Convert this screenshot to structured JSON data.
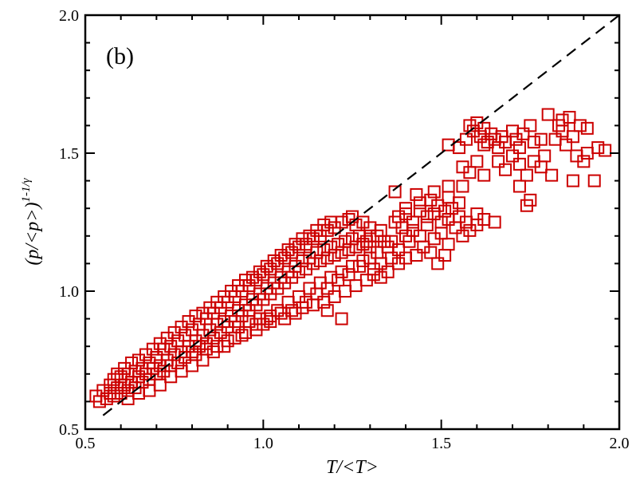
{
  "chart_data": {
    "type": "scatter",
    "panel_label": "(b)",
    "xlabel": "T/<T>",
    "ylabel": "(p/<p>)",
    "ylabel_exponent": "1-1/γ",
    "xlim": [
      0.5,
      2.0
    ],
    "ylim": [
      0.5,
      2.0
    ],
    "x_ticks": [
      0.5,
      1.0,
      1.5,
      2.0
    ],
    "x_tick_labels": [
      "0.5",
      "1.0",
      "1.5",
      "2.0"
    ],
    "y_ticks": [
      0.5,
      1.0,
      1.5,
      2.0
    ],
    "y_tick_labels": [
      "0.5",
      "1.0",
      "1.5",
      "2.0"
    ],
    "marker": "open-square",
    "marker_color": "#cc0000",
    "reference_line": {
      "style": "dashed",
      "color": "#000000",
      "x": [
        0.55,
        2.0
      ],
      "y": [
        0.55,
        2.0
      ]
    },
    "series": [
      {
        "name": "data",
        "points": [
          [
            0.53,
            0.62
          ],
          [
            0.54,
            0.6
          ],
          [
            0.55,
            0.64
          ],
          [
            0.56,
            0.61
          ],
          [
            0.57,
            0.63
          ],
          [
            0.58,
            0.62
          ],
          [
            0.59,
            0.65
          ],
          [
            0.6,
            0.63
          ],
          [
            0.61,
            0.66
          ],
          [
            0.62,
            0.64
          ],
          [
            0.63,
            0.67
          ],
          [
            0.64,
            0.65
          ],
          [
            0.65,
            0.69
          ],
          [
            0.66,
            0.67
          ],
          [
            0.67,
            0.7
          ],
          [
            0.68,
            0.68
          ],
          [
            0.69,
            0.72
          ],
          [
            0.7,
            0.7
          ],
          [
            0.71,
            0.73
          ],
          [
            0.72,
            0.71
          ],
          [
            0.73,
            0.75
          ],
          [
            0.74,
            0.73
          ],
          [
            0.75,
            0.77
          ],
          [
            0.76,
            0.74
          ],
          [
            0.77,
            0.78
          ],
          [
            0.78,
            0.76
          ],
          [
            0.79,
            0.8
          ],
          [
            0.8,
            0.78
          ],
          [
            0.81,
            0.82
          ],
          [
            0.82,
            0.8
          ],
          [
            0.83,
            0.84
          ],
          [
            0.84,
            0.81
          ],
          [
            0.85,
            0.86
          ],
          [
            0.86,
            0.83
          ],
          [
            0.87,
            0.88
          ],
          [
            0.88,
            0.85
          ],
          [
            0.89,
            0.89
          ],
          [
            0.9,
            0.87
          ],
          [
            0.91,
            0.91
          ],
          [
            0.92,
            0.89
          ],
          [
            0.93,
            0.93
          ],
          [
            0.94,
            0.91
          ],
          [
            0.95,
            0.95
          ],
          [
            0.96,
            0.93
          ],
          [
            0.97,
            0.97
          ],
          [
            0.98,
            0.95
          ],
          [
            0.99,
            0.99
          ],
          [
            1.0,
            0.97
          ],
          [
            1.01,
            1.01
          ],
          [
            1.02,
            0.99
          ],
          [
            1.03,
            1.03
          ],
          [
            1.04,
            1.01
          ],
          [
            1.05,
            1.05
          ],
          [
            1.06,
            1.03
          ],
          [
            1.07,
            1.07
          ],
          [
            1.08,
            1.05
          ],
          [
            1.09,
            1.09
          ],
          [
            1.1,
            1.07
          ],
          [
            1.11,
            1.11
          ],
          [
            1.12,
            1.08
          ],
          [
            1.13,
            1.12
          ],
          [
            1.14,
            1.1
          ],
          [
            1.15,
            1.14
          ],
          [
            1.16,
            1.11
          ],
          [
            1.17,
            1.15
          ],
          [
            1.18,
            1.12
          ],
          [
            1.19,
            1.16
          ],
          [
            1.2,
            1.13
          ],
          [
            1.21,
            1.17
          ],
          [
            1.22,
            1.14
          ],
          [
            1.23,
            1.18
          ],
          [
            1.24,
            1.15
          ],
          [
            1.25,
            1.19
          ],
          [
            1.26,
            1.16
          ],
          [
            1.27,
            1.2
          ],
          [
            1.28,
            1.17
          ],
          [
            1.29,
            1.18
          ],
          [
            1.3,
            1.16
          ],
          [
            1.32,
            1.2
          ],
          [
            1.34,
            1.18
          ],
          [
            0.58,
            0.68
          ],
          [
            0.6,
            0.69
          ],
          [
            0.62,
            0.7
          ],
          [
            0.64,
            0.71
          ],
          [
            0.66,
            0.72
          ],
          [
            0.68,
            0.74
          ],
          [
            0.7,
            0.76
          ],
          [
            0.72,
            0.79
          ],
          [
            0.74,
            0.8
          ],
          [
            0.76,
            0.82
          ],
          [
            0.78,
            0.84
          ],
          [
            0.8,
            0.86
          ],
          [
            0.82,
            0.88
          ],
          [
            0.84,
            0.9
          ],
          [
            0.86,
            0.92
          ],
          [
            0.88,
            0.94
          ],
          [
            0.9,
            0.96
          ],
          [
            0.92,
            0.98
          ],
          [
            0.94,
            1.0
          ],
          [
            0.96,
            1.02
          ],
          [
            0.98,
            1.04
          ],
          [
            1.0,
            1.06
          ],
          [
            1.02,
            1.08
          ],
          [
            1.04,
            1.1
          ],
          [
            1.06,
            1.12
          ],
          [
            1.08,
            1.14
          ],
          [
            1.1,
            1.16
          ],
          [
            1.12,
            1.17
          ],
          [
            1.14,
            1.19
          ],
          [
            1.16,
            1.2
          ],
          [
            1.18,
            1.22
          ],
          [
            1.2,
            1.23
          ],
          [
            1.22,
            1.25
          ],
          [
            1.24,
            1.26
          ],
          [
            1.26,
            1.24
          ],
          [
            1.28,
            1.25
          ],
          [
            1.3,
            1.23
          ],
          [
            1.25,
            1.27
          ],
          [
            0.62,
            0.61
          ],
          [
            0.65,
            0.63
          ],
          [
            0.68,
            0.64
          ],
          [
            0.71,
            0.66
          ],
          [
            0.74,
            0.69
          ],
          [
            0.77,
            0.71
          ],
          [
            0.8,
            0.73
          ],
          [
            0.83,
            0.75
          ],
          [
            0.86,
            0.78
          ],
          [
            0.89,
            0.8
          ],
          [
            0.92,
            0.83
          ],
          [
            0.95,
            0.85
          ],
          [
            0.98,
            0.88
          ],
          [
            1.01,
            0.9
          ],
          [
            1.04,
            0.93
          ],
          [
            1.07,
            0.96
          ],
          [
            1.1,
            0.98
          ],
          [
            1.13,
            1.01
          ],
          [
            1.16,
            1.03
          ],
          [
            1.19,
            1.05
          ],
          [
            1.22,
            1.07
          ],
          [
            1.25,
            1.09
          ],
          [
            1.28,
            1.11
          ],
          [
            1.31,
            1.08
          ],
          [
            1.33,
            1.05
          ],
          [
            1.29,
            1.04
          ],
          [
            1.26,
            1.02
          ],
          [
            1.23,
            1.0
          ],
          [
            1.2,
            0.98
          ],
          [
            1.17,
            0.96
          ],
          [
            1.14,
            0.95
          ],
          [
            1.11,
            0.94
          ],
          [
            1.08,
            0.93
          ],
          [
            1.05,
            0.92
          ],
          [
            1.02,
            0.91
          ],
          [
            0.99,
            0.9
          ],
          [
            0.96,
            0.89
          ],
          [
            0.93,
            0.87
          ],
          [
            0.57,
            0.66
          ],
          [
            0.59,
            0.7
          ],
          [
            0.61,
            0.72
          ],
          [
            0.63,
            0.74
          ],
          [
            0.65,
            0.75
          ],
          [
            0.67,
            0.77
          ],
          [
            0.69,
            0.79
          ],
          [
            0.71,
            0.81
          ],
          [
            0.73,
            0.83
          ],
          [
            0.75,
            0.85
          ],
          [
            0.77,
            0.87
          ],
          [
            0.79,
            0.89
          ],
          [
            0.81,
            0.91
          ],
          [
            0.83,
            0.92
          ],
          [
            0.85,
            0.94
          ],
          [
            0.87,
            0.96
          ],
          [
            0.89,
            0.98
          ],
          [
            0.91,
            1.0
          ],
          [
            0.93,
            1.02
          ],
          [
            0.95,
            1.04
          ],
          [
            0.97,
            1.05
          ],
          [
            0.99,
            1.07
          ],
          [
            1.01,
            1.09
          ],
          [
            1.03,
            1.11
          ],
          [
            1.05,
            1.13
          ],
          [
            1.07,
            1.15
          ],
          [
            1.09,
            1.17
          ],
          [
            1.11,
            1.19
          ],
          [
            1.13,
            1.2
          ],
          [
            1.15,
            1.22
          ],
          [
            1.17,
            1.24
          ],
          [
            1.19,
            1.25
          ],
          [
            0.98,
            0.86
          ],
          [
            1.0,
            0.88
          ],
          [
            1.02,
            0.89
          ],
          [
            0.94,
            0.84
          ],
          [
            0.9,
            0.82
          ],
          [
            0.87,
            0.8
          ],
          [
            0.84,
            0.79
          ],
          [
            0.81,
            0.77
          ],
          [
            1.06,
            0.9
          ],
          [
            1.09,
            0.92
          ],
          [
            1.12,
            0.96
          ],
          [
            1.15,
            0.99
          ],
          [
            1.18,
            1.01
          ],
          [
            1.21,
            1.04
          ],
          [
            1.24,
            1.06
          ],
          [
            1.27,
            1.09
          ],
          [
            1.3,
            1.12
          ],
          [
            1.32,
            1.14
          ],
          [
            1.35,
            1.16
          ],
          [
            1.3,
            1.2
          ],
          [
            1.33,
            1.22
          ],
          [
            1.36,
            1.18
          ],
          [
            1.38,
            1.15
          ],
          [
            1.4,
            1.2
          ],
          [
            1.33,
            1.1
          ],
          [
            1.36,
            1.12
          ],
          [
            1.38,
            1.1
          ],
          [
            1.35,
            1.07
          ],
          [
            1.31,
            1.06
          ],
          [
            1.37,
            1.25
          ],
          [
            1.39,
            1.23
          ],
          [
            1.41,
            1.18
          ],
          [
            1.42,
            1.22
          ],
          [
            1.44,
            1.2
          ],
          [
            1.45,
            1.16
          ],
          [
            1.43,
            1.13
          ],
          [
            1.4,
            1.12
          ],
          [
            1.46,
            1.24
          ],
          [
            1.48,
            1.19
          ],
          [
            1.47,
            1.14
          ],
          [
            1.5,
            1.21
          ],
          [
            1.52,
            1.17
          ],
          [
            1.51,
            1.13
          ],
          [
            1.49,
            1.1
          ],
          [
            1.38,
            1.27
          ],
          [
            1.4,
            1.28
          ],
          [
            1.42,
            1.25
          ],
          [
            1.44,
            1.29
          ],
          [
            1.46,
            1.27
          ],
          [
            1.48,
            1.28
          ],
          [
            1.5,
            1.25
          ],
          [
            1.22,
            0.9
          ],
          [
            1.18,
            0.93
          ],
          [
            1.43,
            1.35
          ],
          [
            1.44,
            1.32
          ],
          [
            1.47,
            1.33
          ],
          [
            1.49,
            1.31
          ],
          [
            1.51,
            1.29
          ],
          [
            1.52,
            1.34
          ],
          [
            1.53,
            1.3
          ],
          [
            1.55,
            1.27
          ],
          [
            1.57,
            1.25
          ],
          [
            1.6,
            1.28
          ],
          [
            1.62,
            1.26
          ],
          [
            1.65,
            1.25
          ],
          [
            1.55,
            1.32
          ],
          [
            1.52,
            1.38
          ],
          [
            1.48,
            1.36
          ],
          [
            1.37,
            1.36
          ],
          [
            1.4,
            1.3
          ],
          [
            1.52,
            1.53
          ],
          [
            1.55,
            1.52
          ],
          [
            1.57,
            1.55
          ],
          [
            1.58,
            1.6
          ],
          [
            1.59,
            1.58
          ],
          [
            1.61,
            1.56
          ],
          [
            1.62,
            1.53
          ],
          [
            1.63,
            1.54
          ],
          [
            1.64,
            1.57
          ],
          [
            1.65,
            1.55
          ],
          [
            1.66,
            1.52
          ],
          [
            1.67,
            1.56
          ],
          [
            1.68,
            1.54
          ],
          [
            1.7,
            1.58
          ],
          [
            1.71,
            1.55
          ],
          [
            1.72,
            1.52
          ],
          [
            1.73,
            1.57
          ],
          [
            1.75,
            1.6
          ],
          [
            1.76,
            1.54
          ],
          [
            1.78,
            1.55
          ],
          [
            1.62,
            1.59
          ],
          [
            1.6,
            1.61
          ],
          [
            1.56,
            1.45
          ],
          [
            1.58,
            1.43
          ],
          [
            1.6,
            1.47
          ],
          [
            1.62,
            1.42
          ],
          [
            1.66,
            1.47
          ],
          [
            1.68,
            1.44
          ],
          [
            1.7,
            1.49
          ],
          [
            1.72,
            1.46
          ],
          [
            1.74,
            1.42
          ],
          [
            1.76,
            1.47
          ],
          [
            1.78,
            1.45
          ],
          [
            1.79,
            1.49
          ],
          [
            1.56,
            1.38
          ],
          [
            1.72,
            1.38
          ],
          [
            1.74,
            1.31
          ],
          [
            1.75,
            1.33
          ],
          [
            1.81,
            1.42
          ],
          [
            1.87,
            1.4
          ],
          [
            1.91,
            1.5
          ],
          [
            1.93,
            1.4
          ],
          [
            1.8,
            1.64
          ],
          [
            1.83,
            1.6
          ],
          [
            1.84,
            1.62
          ],
          [
            1.86,
            1.63
          ],
          [
            1.87,
            1.56
          ],
          [
            1.89,
            1.6
          ],
          [
            1.91,
            1.59
          ],
          [
            1.85,
            1.53
          ],
          [
            1.88,
            1.49
          ],
          [
            1.9,
            1.47
          ],
          [
            1.94,
            1.52
          ],
          [
            1.96,
            1.51
          ],
          [
            1.82,
            1.55
          ],
          [
            1.84,
            1.58
          ],
          [
            1.56,
            1.2
          ],
          [
            1.58,
            1.22
          ],
          [
            1.6,
            1.24
          ],
          [
            1.54,
            1.23
          ],
          [
            1.52,
            1.26
          ]
        ]
      }
    ]
  }
}
